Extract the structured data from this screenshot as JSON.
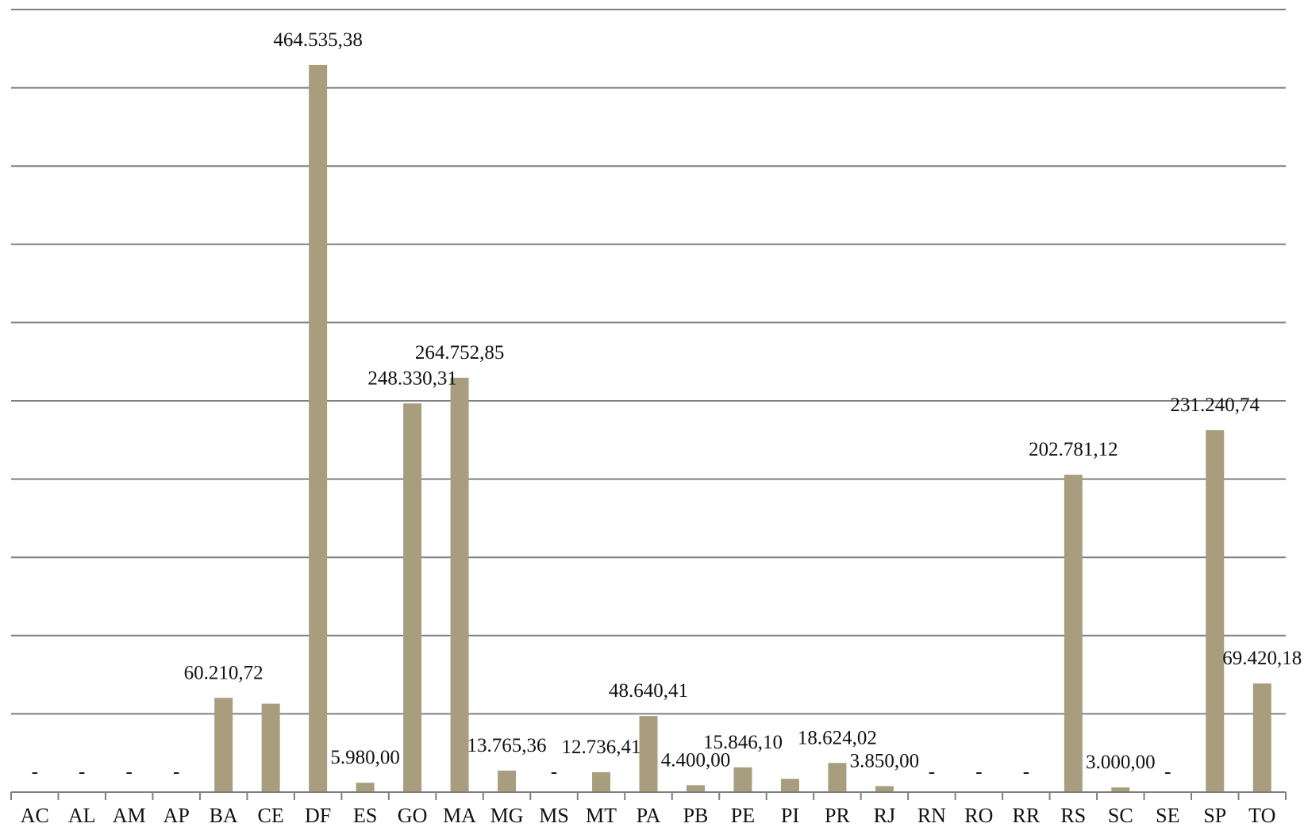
{
  "chart_data": {
    "type": "bar",
    "categories": [
      "AC",
      "AL",
      "AM",
      "AP",
      "BA",
      "CE",
      "DF",
      "ES",
      "GO",
      "MA",
      "MG",
      "MS",
      "MT",
      "PA",
      "PB",
      "PE",
      "PI",
      "PR",
      "RJ",
      "RN",
      "RO",
      "RR",
      "RS",
      "SC",
      "SE",
      "SP",
      "TO"
    ],
    "values": [
      0,
      0,
      0,
      0,
      60210.72,
      56500,
      464535.38,
      5980.0,
      248330.31,
      264752.85,
      13765.36,
      0,
      12736.41,
      48640.41,
      4400.0,
      15846.1,
      8500,
      18624.02,
      3850.0,
      0,
      0,
      0,
      202781.12,
      3000.0,
      0,
      231240.74,
      69420.18
    ],
    "data_labels": [
      "-",
      "-",
      "-",
      "-",
      "60.210,72",
      "",
      "464.535,38",
      "5.980,00",
      "248.330,31",
      "264.752,85",
      "13.765,36",
      "-",
      "12.736,41",
      "48.640,41",
      "4.400,00",
      "15.846,10",
      "",
      "18.624,02",
      "3.850,00",
      "-",
      "-",
      "-",
      "202.781,12",
      "3.000,00",
      "-",
      "231.240,74",
      "69.420,18"
    ],
    "colors": {
      "bar": "#a89e7e",
      "grid": "#7f7f7f",
      "text": "#111111"
    },
    "ylim": [
      0,
      500000
    ],
    "grid": true,
    "legend": "none"
  }
}
